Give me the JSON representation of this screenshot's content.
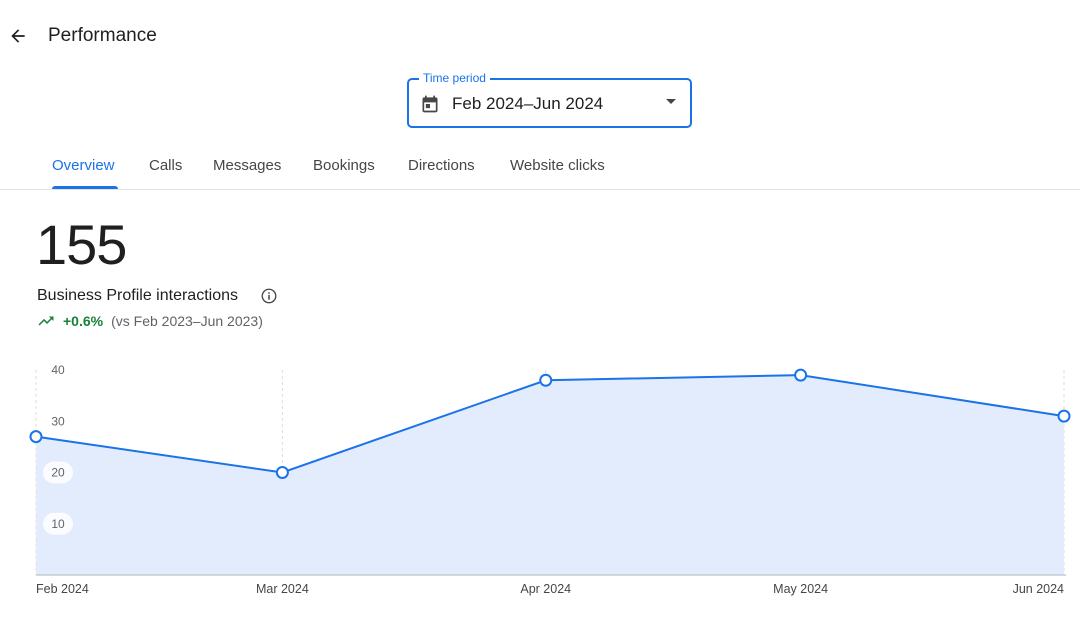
{
  "header": {
    "title": "Performance",
    "back_icon": "arrow-back-icon"
  },
  "time_period": {
    "label": "Time period",
    "value": "Feb 2024–Jun 2024",
    "icon": "calendar-icon"
  },
  "tabs": [
    {
      "label": "Overview",
      "active": true
    },
    {
      "label": "Calls",
      "active": false
    },
    {
      "label": "Messages",
      "active": false
    },
    {
      "label": "Bookings",
      "active": false
    },
    {
      "label": "Directions",
      "active": false
    },
    {
      "label": "Website clicks",
      "active": false
    }
  ],
  "metric": {
    "value": "155",
    "label": "Business Profile interactions",
    "change": "+0.6%",
    "comparison": "(vs Feb 2023–Jun 2023)"
  },
  "colors": {
    "accent": "#1a73e8",
    "positive": "#188038",
    "area_fill": "#e2ecfd"
  },
  "chart_data": {
    "type": "area",
    "categories": [
      "Feb 2024",
      "Mar 2024",
      "Apr 2024",
      "May 2024",
      "Jun 2024"
    ],
    "x_dates": [
      "2024-02-01",
      "2024-03-01",
      "2024-04-01",
      "2024-05-01",
      "2024-06-01"
    ],
    "values": [
      27,
      20,
      38,
      39,
      31
    ],
    "y_ticks": [
      10,
      20,
      30,
      40
    ],
    "ylim": [
      0,
      40
    ],
    "grid": "vertical-dashed",
    "legend": "none"
  }
}
